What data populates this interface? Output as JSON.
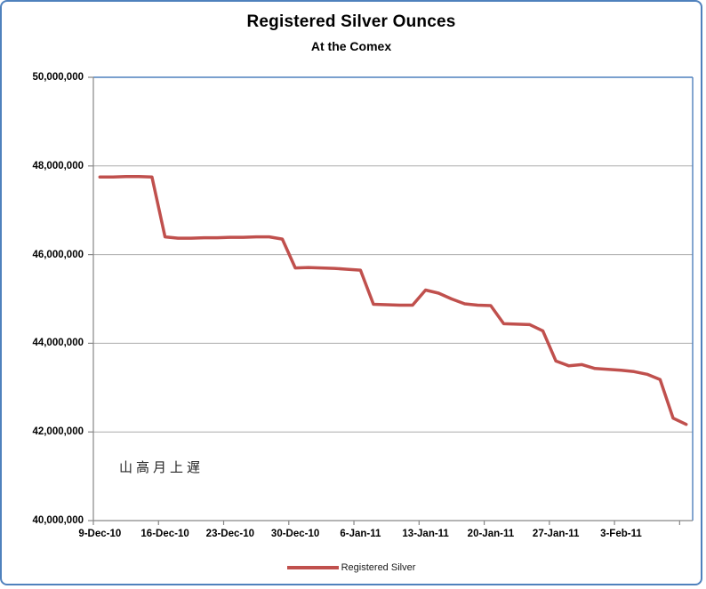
{
  "chart": {
    "title": "Registered Silver Ounces",
    "subtitle": "At the Comex",
    "annotation": "山高月上遅",
    "legend_label": "Registered Silver",
    "colors": {
      "series_line": "#C0504D",
      "chart_border": "#4F81BD",
      "plot_border": "#4F81BD",
      "axis": "#878787",
      "gridline": "#ABABAB",
      "title_text": "#000000",
      "legend_text": "#1a1a1a"
    }
  },
  "chart_data": {
    "type": "line",
    "title": "Registered Silver Ounces",
    "subtitle": "At the Comex",
    "xlabel": "",
    "ylabel": "",
    "ylim": [
      40000000,
      50000000
    ],
    "y_step": 2000000,
    "grid": "horizontal",
    "legend_position": "bottom",
    "y_tick_labels": [
      "50,000,000",
      "48,000,000",
      "46,000,000",
      "44,000,000",
      "42,000,000",
      "40,000,000"
    ],
    "x_tick_labels": [
      "9-Dec-10",
      "16-Dec-10",
      "23-Dec-10",
      "30-Dec-10",
      "6-Jan-11",
      "13-Jan-11",
      "20-Jan-11",
      "27-Jan-11",
      "3-Feb-11"
    ],
    "x_tick_every": 5,
    "categories": [
      "9-Dec-10",
      "10-Dec-10",
      "13-Dec-10",
      "14-Dec-10",
      "15-Dec-10",
      "16-Dec-10",
      "17-Dec-10",
      "20-Dec-10",
      "21-Dec-10",
      "22-Dec-10",
      "23-Dec-10",
      "24-Dec-10",
      "27-Dec-10",
      "28-Dec-10",
      "29-Dec-10",
      "30-Dec-10",
      "31-Dec-10",
      "3-Jan-11",
      "4-Jan-11",
      "5-Jan-11",
      "6-Jan-11",
      "7-Jan-11",
      "10-Jan-11",
      "11-Jan-11",
      "12-Jan-11",
      "13-Jan-11",
      "14-Jan-11",
      "17-Jan-11",
      "18-Jan-11",
      "19-Jan-11",
      "20-Jan-11",
      "21-Jan-11",
      "24-Jan-11",
      "25-Jan-11",
      "26-Jan-11",
      "27-Jan-11",
      "28-Jan-11",
      "31-Jan-11",
      "1-Feb-11",
      "2-Feb-11",
      "3-Feb-11",
      "4-Feb-11",
      "7-Feb-11",
      "8-Feb-11",
      "9-Feb-11",
      "10-Feb-11"
    ],
    "series": [
      {
        "name": "Registered Silver",
        "color": "#C0504D",
        "values": [
          47750000,
          47750000,
          47760000,
          47760000,
          47750000,
          46400000,
          46370000,
          46370000,
          46380000,
          46380000,
          46390000,
          46390000,
          46400000,
          46400000,
          46350000,
          45700000,
          45710000,
          45700000,
          45690000,
          45670000,
          45650000,
          44880000,
          44870000,
          44860000,
          44860000,
          45200000,
          45130000,
          45000000,
          44890000,
          44860000,
          44850000,
          44440000,
          44430000,
          44420000,
          44280000,
          43600000,
          43490000,
          43520000,
          43430000,
          43410000,
          43390000,
          43360000,
          43300000,
          43180000,
          42310000,
          42170000
        ]
      }
    ]
  }
}
